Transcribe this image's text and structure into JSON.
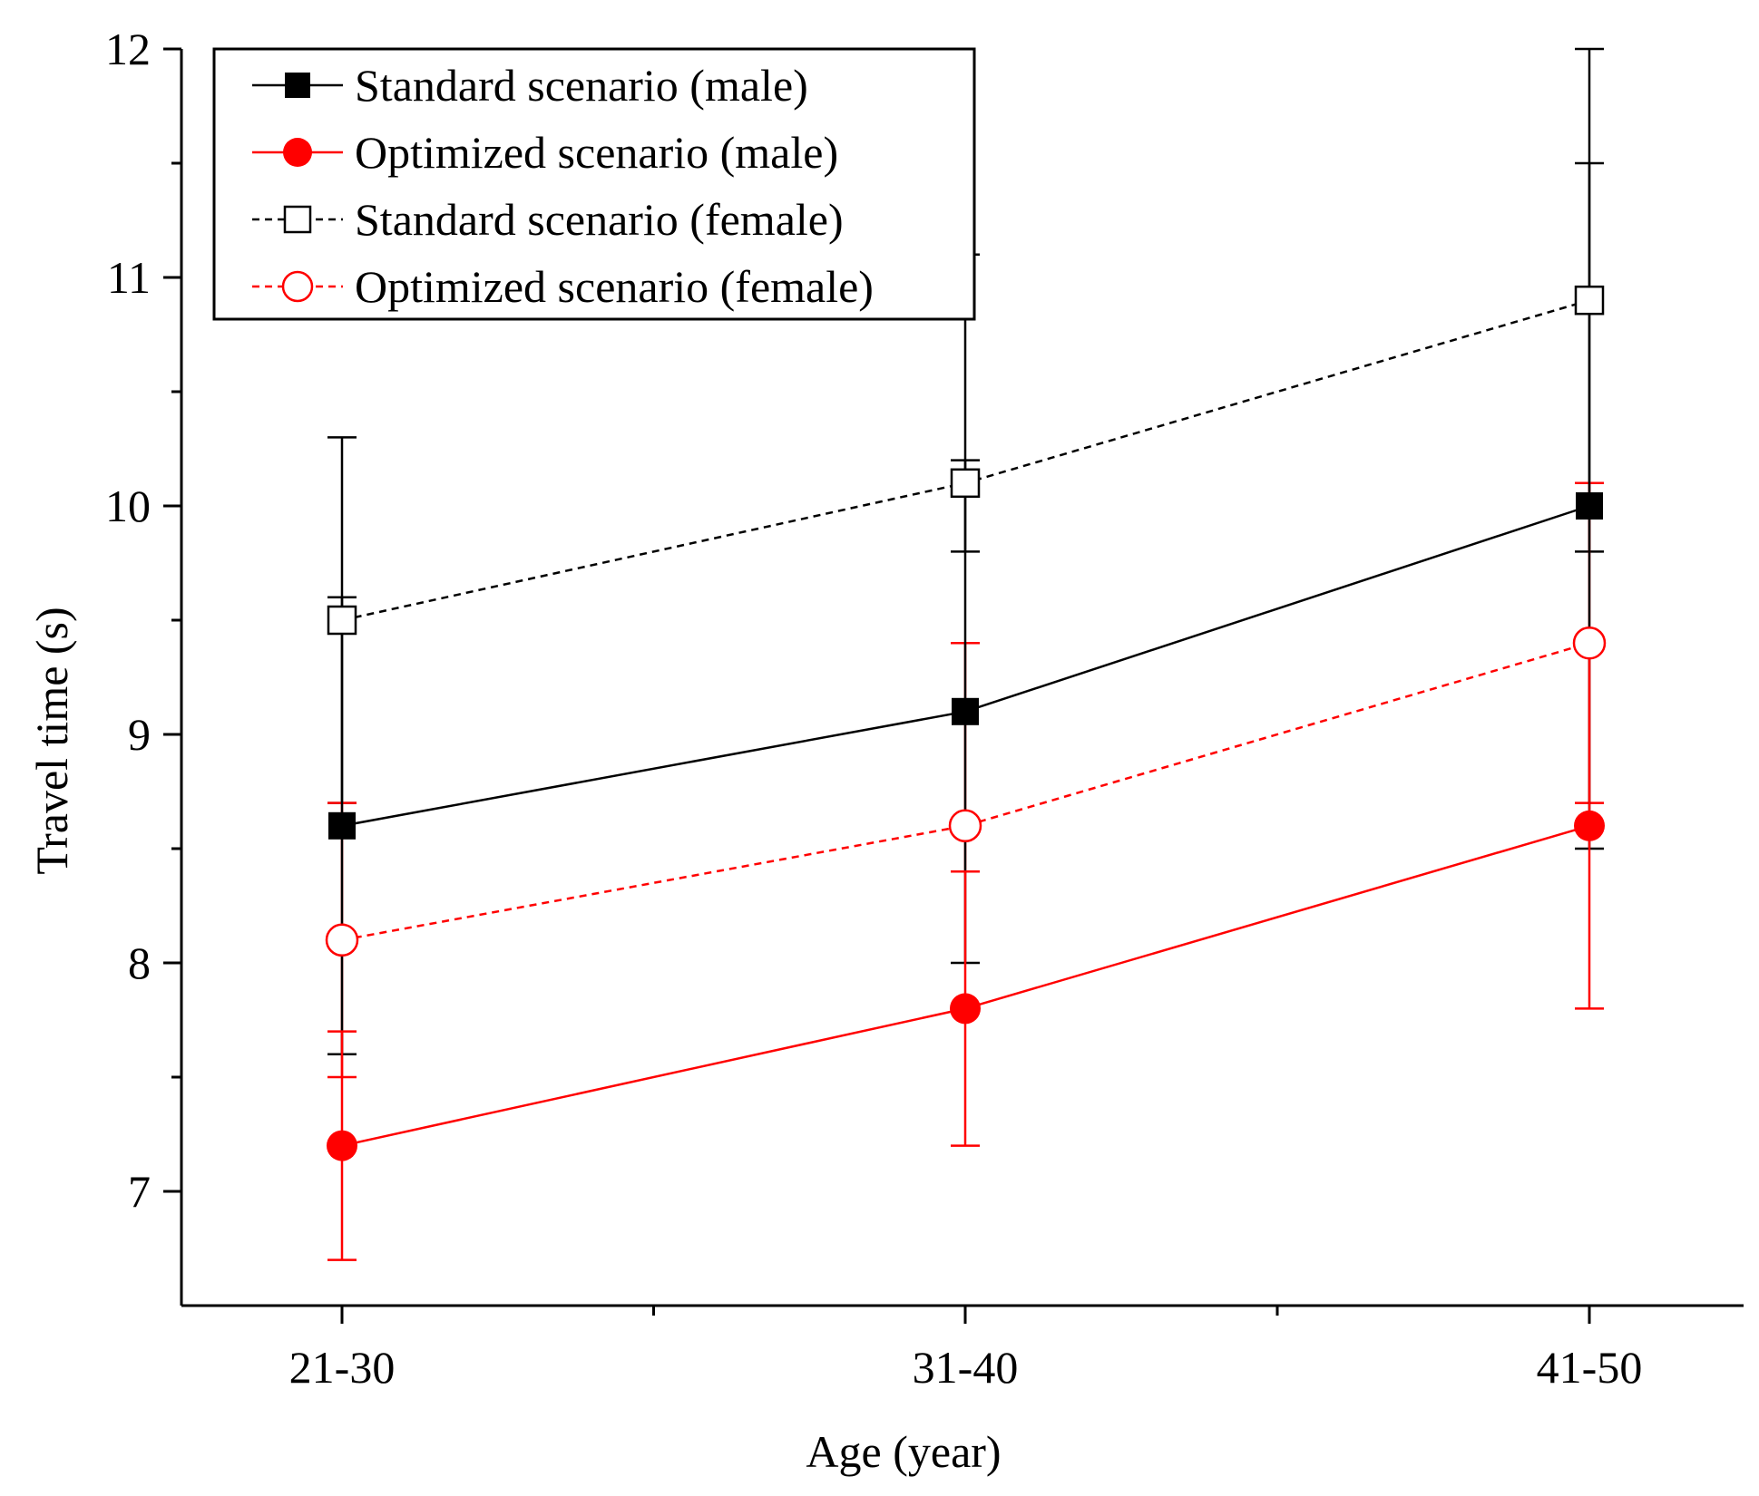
{
  "chart_data": {
    "type": "line",
    "title": "",
    "xlabel": "Age (year)",
    "ylabel": "Travel time (s)",
    "categories": [
      "21-30",
      "31-40",
      "41-50"
    ],
    "ylim": [
      6.5,
      12
    ],
    "yticks": [
      "7",
      "8",
      "9",
      "10",
      "11",
      "12"
    ],
    "legend_position": "top-left",
    "series": [
      {
        "name": "Standard scenario (male)",
        "color": "#000000",
        "marker": "filled-square",
        "line": "solid",
        "values": [
          8.6,
          9.1,
          10.0
        ],
        "error_low": [
          7.6,
          8.0,
          8.5
        ],
        "error_high": [
          9.6,
          10.2,
          11.5
        ]
      },
      {
        "name": "Optimized scenario (male)",
        "color": "#ff0000",
        "marker": "filled-circle",
        "line": "solid",
        "values": [
          7.2,
          7.8,
          8.6
        ],
        "error_low": [
          6.7,
          7.2,
          7.8
        ],
        "error_high": [
          7.7,
          8.4,
          9.4
        ]
      },
      {
        "name": "Standard scenario (female)",
        "color": "#000000",
        "marker": "open-square",
        "line": "dashed",
        "values": [
          9.5,
          10.1,
          10.9
        ],
        "error_low": [
          8.7,
          9.8,
          9.8
        ],
        "error_high": [
          10.3,
          11.1,
          12.0
        ]
      },
      {
        "name": "Optimized scenario (female)",
        "color": "#ff0000",
        "marker": "open-circle",
        "line": "dashed",
        "values": [
          8.1,
          8.6,
          9.4
        ],
        "error_low": [
          7.5,
          8.4,
          8.7
        ],
        "error_high": [
          8.7,
          9.4,
          10.1
        ]
      }
    ]
  }
}
